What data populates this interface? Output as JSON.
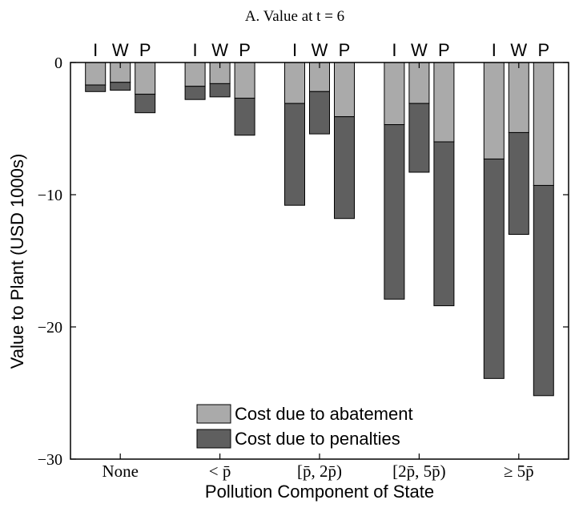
{
  "chart_data": {
    "type": "bar",
    "subtype": "stacked",
    "title": "A. Value at t = 6",
    "xlabel": "Pollution Component of State",
    "ylabel": "Value to Plant (USD 1000s)",
    "ylim": [
      -30,
      0
    ],
    "yticks": [
      0,
      -10,
      -20,
      -30
    ],
    "ytick_labels": [
      "0",
      "−10",
      "−20",
      "−30"
    ],
    "grid": false,
    "legend_position": "bottom-center",
    "categories": [
      "None",
      "< p̄",
      "[p̄, 2p̄)",
      "[2p̄, 5p̄)",
      "≥ 5p̄"
    ],
    "subcategories": [
      "I",
      "W",
      "P"
    ],
    "colors": {
      "abatement": "#aaaaaa",
      "penalties": "#5f5f5f",
      "edge": "#000000"
    },
    "series": [
      {
        "name": "Cost due to abatement",
        "values": [
          [
            -1.7,
            -1.5,
            -2.4
          ],
          [
            -1.8,
            -1.6,
            -2.7
          ],
          [
            -3.1,
            -2.2,
            -4.1
          ],
          [
            -4.7,
            -3.1,
            -6.0
          ],
          [
            -7.3,
            -5.3,
            -9.3
          ]
        ]
      },
      {
        "name": "Cost due to penalties",
        "values": [
          [
            -0.5,
            -0.6,
            -1.4
          ],
          [
            -1.0,
            -1.0,
            -2.8
          ],
          [
            -7.7,
            -3.2,
            -7.7
          ],
          [
            -13.2,
            -5.2,
            -12.4
          ],
          [
            -16.6,
            -7.7,
            -15.9
          ]
        ]
      }
    ]
  }
}
